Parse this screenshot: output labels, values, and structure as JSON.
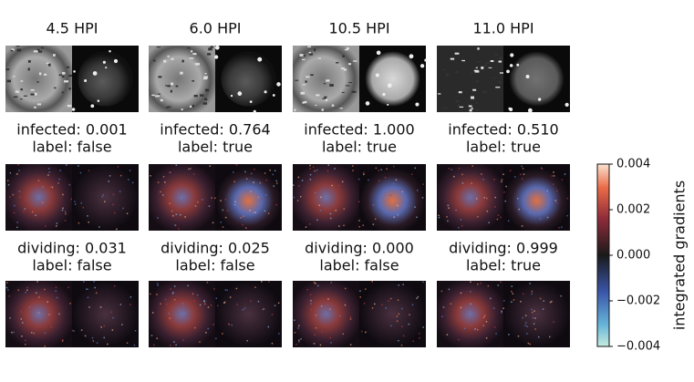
{
  "columns": [
    {
      "title": "4.5 HPI",
      "infected": [
        "infected: 0.001",
        "label: false"
      ],
      "dividing": [
        "dividing: 0.031",
        "label: false"
      ]
    },
    {
      "title": "6.0 HPI",
      "infected": [
        "infected: 0.764",
        "label: true"
      ],
      "dividing": [
        "dividing: 0.025",
        "label: false"
      ]
    },
    {
      "title": "10.5 HPI",
      "infected": [
        "infected: 1.000",
        "label: true"
      ],
      "dividing": [
        "dividing: 0.000",
        "label: false"
      ]
    },
    {
      "title": "11.0 HPI",
      "infected": [
        "infected: 0.510",
        "label: true"
      ],
      "dividing": [
        "dividing: 0.999",
        "label: true"
      ]
    }
  ],
  "colorbar": {
    "label": "integrated gradients",
    "lim": [
      -0.004,
      0.004
    ],
    "ticks": [
      {
        "value": -0.004,
        "label": "−0.004"
      },
      {
        "value": -0.002,
        "label": "−0.002"
      },
      {
        "value": 0,
        "label": "0.000"
      },
      0.002,
      0.004
    ]
  }
}
